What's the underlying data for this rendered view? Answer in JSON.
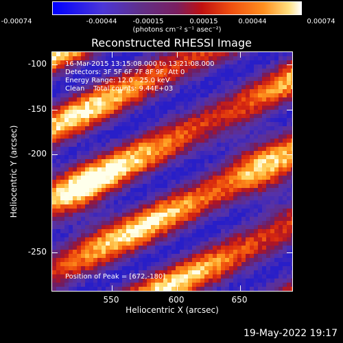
{
  "colorbar": {
    "ticks": [
      "-0.00074",
      "-0.00044",
      "-0.00015",
      "0.00015",
      "0.00044",
      "0.00074"
    ],
    "units": "(photons cm⁻² s⁻¹ asec⁻²)"
  },
  "title": "Reconstructed RHESSI Image",
  "info": {
    "time": "16-Mar-2015 13:15:08.000 to 13:21:08.000",
    "detectors": "Detectors: 3F 5F 6F 7F 8F 9F, Att 0",
    "energy": "Energy Range: 12.0 - 25.0 keV",
    "clean": "Clean    Total counts: 9.44E+03",
    "peak": "Position of Peak = [672,-180]"
  },
  "axes": {
    "xlabel": "Heliocentric X (arcsec)",
    "ylabel": "Heliocentric Y (arcsec)",
    "xticks": [
      "550",
      "600",
      "650"
    ],
    "yticks": [
      "-100",
      "-150",
      "-200",
      "-250"
    ]
  },
  "timestamp": "19-May-2022 19:17",
  "colors": {
    "background": "#000000",
    "colormap": [
      "#0000ff",
      "#4b36d8",
      "#5a3a9a",
      "#60308a",
      "#8a1a50",
      "#c01010",
      "#f05010",
      "#ff9020",
      "#ffd060",
      "#fffff0"
    ]
  }
}
